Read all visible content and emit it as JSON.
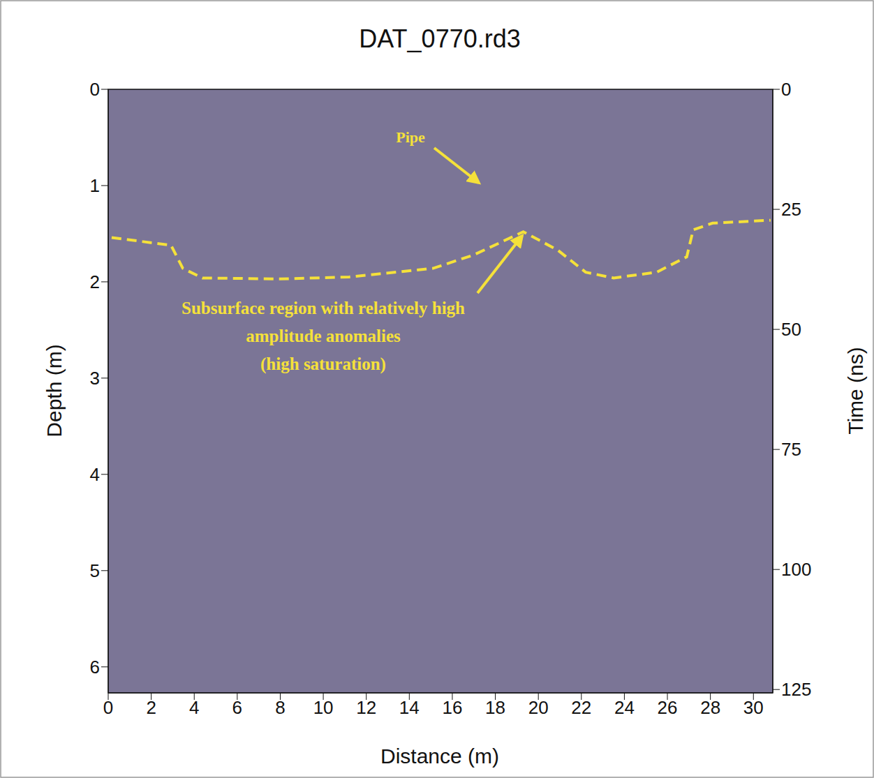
{
  "chart_data": {
    "type": "line",
    "title": "DAT_0770.rd3",
    "x_label": "Distance (m)",
    "y_label": "Depth (m)",
    "y2_label": "Time (ns)",
    "xlim": [
      0,
      30.9
    ],
    "xticks": [
      0,
      2,
      4,
      6,
      8,
      10,
      12,
      14,
      16,
      18,
      20,
      22,
      24,
      26,
      28,
      30
    ],
    "ylim": [
      0,
      6.27
    ],
    "yticks": [
      0,
      1,
      2,
      3,
      4,
      5,
      6
    ],
    "y2lim": [
      0,
      125.7
    ],
    "y2ticks": [
      0,
      25,
      50,
      75,
      100,
      125
    ],
    "x": [
      0.16,
      2.92,
      3.47,
      4.38,
      7.95,
      11.2,
      15.1,
      17.0,
      19.3,
      20.9,
      22.2,
      23.5,
      25.5,
      26.9,
      27.2,
      28.1,
      30.8
    ],
    "values": [
      1.54,
      1.62,
      1.86,
      1.96,
      1.97,
      1.95,
      1.86,
      1.72,
      1.48,
      1.67,
      1.9,
      1.96,
      1.9,
      1.74,
      1.46,
      1.39,
      1.36
    ],
    "color": "#f5e13a",
    "line_style": "dashed",
    "annotations": [
      "Pipe",
      [
        "Subsurface region with relatively high",
        "amplitude anomalies",
        "(high saturation)"
      ]
    ]
  }
}
